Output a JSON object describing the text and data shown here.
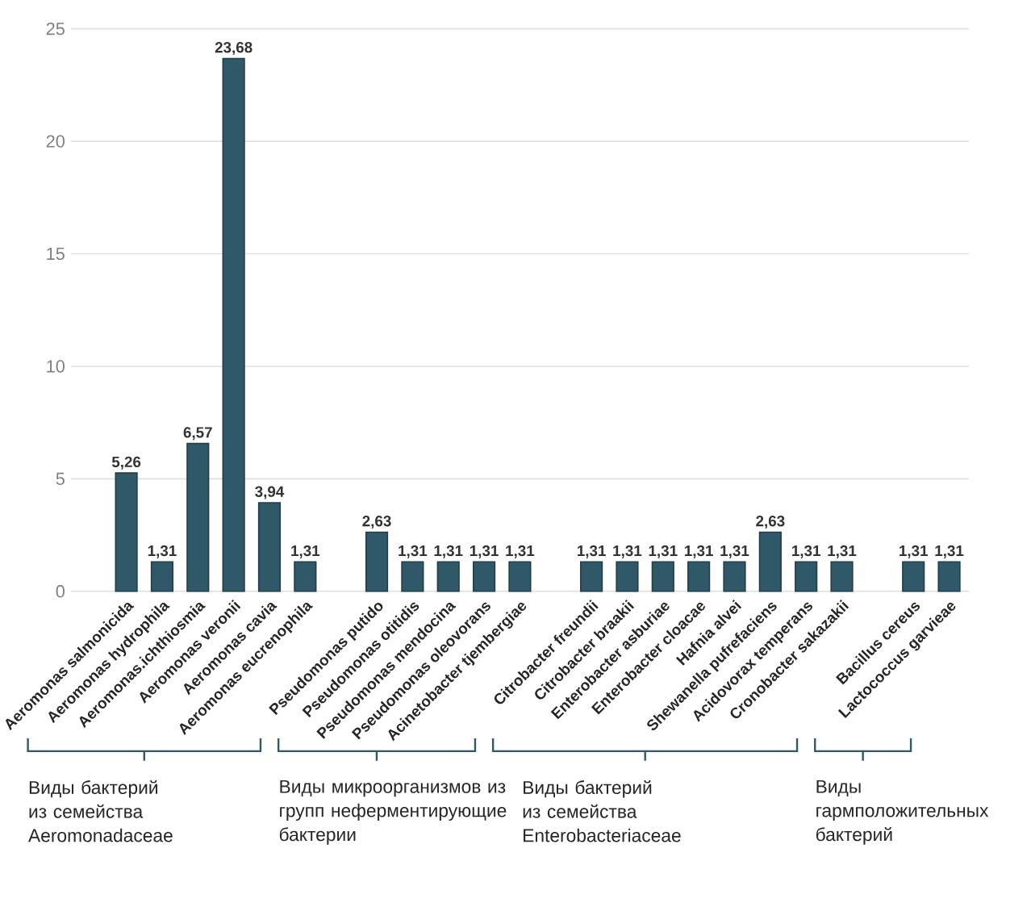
{
  "chart_data": {
    "type": "bar",
    "categories": [
      "Aeromonas salmonicida",
      "Aeromonas hydrophila",
      "Aeromonas.ichthiosmia",
      "Aeromonas veronii",
      "Aeromonas cavia",
      "Aeromonas eucrenophila",
      null,
      "Pseudomonas putido",
      "Pseudomonas otitidis",
      "Pseudomonas mendocina",
      "Pseudomonas oleovorans",
      "Acinetobacter tjembergiae",
      null,
      "Citrobacter  freundii",
      "Citrobacter braakii",
      "Enterobacter asburiae",
      "Enterobacter cloacae",
      "Hafnia alvei",
      "Shewanella pufrefaciens",
      "Acidovorax temperans",
      "Cronobacter sakazakii",
      null,
      "Bacillus cereus",
      "Lactococcus garvieae"
    ],
    "values": [
      5.26,
      1.31,
      6.57,
      23.68,
      3.94,
      1.31,
      null,
      2.63,
      1.31,
      1.31,
      1.31,
      1.31,
      null,
      1.31,
      1.31,
      1.31,
      1.31,
      1.31,
      2.63,
      1.31,
      1.31,
      null,
      1.31,
      1.31
    ],
    "value_labels": [
      "5,26",
      "1,31",
      "6,57",
      "23,68",
      "3,94",
      "1,31",
      null,
      "2,63",
      "1,31",
      "1,31",
      "1,31",
      "1,31",
      null,
      "1,31",
      "1,31",
      "1,31",
      "1,31",
      "1,31",
      "2,63",
      "1,31",
      "1,31",
      null,
      "1,31",
      "1,31"
    ],
    "color": "#2f5868",
    "ylim": [
      0,
      25
    ],
    "yticks": [
      0,
      5,
      10,
      15,
      20,
      25
    ],
    "grid": "y",
    "annotations": [
      "Виды бактерий из семейства Aeromonadaceae",
      "Виды микроорганизмов из групп неферментирующие бактерии",
      "Виды бактерий из семейства Enterobacteriaceae",
      "Виды гармположительных бактерий"
    ]
  }
}
